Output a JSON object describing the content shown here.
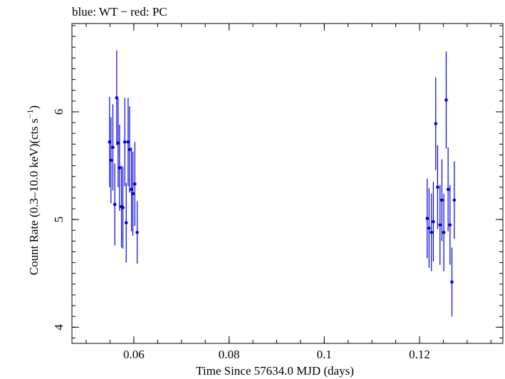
{
  "header": {
    "title": "blue: WT − red: PC"
  },
  "colors": {
    "wt": "#0000e0",
    "frame": "#000000",
    "background": "#ffffff"
  },
  "chart_data": {
    "type": "scatter",
    "title": "blue: WT − red: PC",
    "xlabel": "Time Since 57634.0 MJD (days)",
    "ylabel_main": "Count Rate (0.3–10.0 keV)(cts s",
    "ylabel_sup": "−1",
    "ylabel_close": ")",
    "xlim": [
      0.047,
      0.1375
    ],
    "ylim": [
      3.85,
      6.82
    ],
    "xticks": [
      0.06,
      0.08,
      0.1,
      0.12
    ],
    "xtick_labels": [
      "0.06",
      "0.08",
      "0.1",
      "0.12"
    ],
    "yticks": [
      4,
      5,
      6
    ],
    "ytick_labels": [
      "4",
      "5",
      "6"
    ],
    "x_minor_step": 0.005,
    "y_minor_step": 0.1,
    "grid": false,
    "series": [
      {
        "name": "WT",
        "color": "#0000e0",
        "points": [
          {
            "x": 0.0549,
            "y": 5.72,
            "err": 0.42
          },
          {
            "x": 0.0552,
            "y": 5.55,
            "err": 0.4
          },
          {
            "x": 0.0556,
            "y": 5.67,
            "err": 0.4
          },
          {
            "x": 0.056,
            "y": 5.14,
            "err": 0.38
          },
          {
            "x": 0.0564,
            "y": 6.13,
            "err": 0.44
          },
          {
            "x": 0.0567,
            "y": 5.71,
            "err": 0.41
          },
          {
            "x": 0.057,
            "y": 5.48,
            "err": 0.4
          },
          {
            "x": 0.0574,
            "y": 5.12,
            "err": 0.38
          },
          {
            "x": 0.0577,
            "y": 5.11,
            "err": 0.38
          },
          {
            "x": 0.0581,
            "y": 5.72,
            "err": 0.41
          },
          {
            "x": 0.0584,
            "y": 4.97,
            "err": 0.37
          },
          {
            "x": 0.0588,
            "y": 5.72,
            "err": 0.41
          },
          {
            "x": 0.0591,
            "y": 5.65,
            "err": 0.4
          },
          {
            "x": 0.0595,
            "y": 5.28,
            "err": 0.39
          },
          {
            "x": 0.0598,
            "y": 5.24,
            "err": 0.39
          },
          {
            "x": 0.0602,
            "y": 5.33,
            "err": 0.39
          },
          {
            "x": 0.0607,
            "y": 4.88,
            "err": 0.29
          },
          {
            "x": 0.1216,
            "y": 5.01,
            "err": 0.37
          },
          {
            "x": 0.122,
            "y": 4.92,
            "err": 0.37
          },
          {
            "x": 0.1225,
            "y": 4.88,
            "err": 0.36
          },
          {
            "x": 0.1229,
            "y": 4.98,
            "err": 0.37
          },
          {
            "x": 0.1234,
            "y": 5.89,
            "err": 0.43
          },
          {
            "x": 0.1238,
            "y": 5.3,
            "err": 0.39
          },
          {
            "x": 0.1243,
            "y": 4.95,
            "err": 0.37
          },
          {
            "x": 0.1247,
            "y": 5.18,
            "err": 0.38
          },
          {
            "x": 0.1251,
            "y": 4.88,
            "err": 0.36
          },
          {
            "x": 0.1256,
            "y": 6.11,
            "err": 0.45
          },
          {
            "x": 0.126,
            "y": 5.28,
            "err": 0.39
          },
          {
            "x": 0.1264,
            "y": 4.95,
            "err": 0.37
          },
          {
            "x": 0.1268,
            "y": 4.42,
            "err": 0.32
          },
          {
            "x": 0.1273,
            "y": 5.18,
            "err": 0.36
          }
        ]
      }
    ]
  }
}
